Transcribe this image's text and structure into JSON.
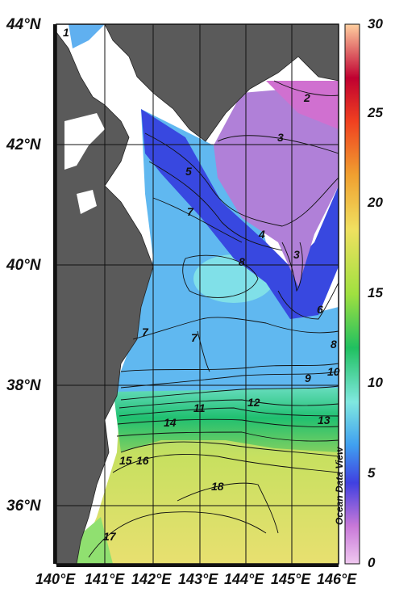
{
  "map": {
    "lat_labels": [
      "44°N",
      "42°N",
      "40°N",
      "38°N",
      "36°N"
    ],
    "lon_labels": [
      "140°E",
      "141°E",
      "142°E",
      "143°E",
      "144°E",
      "145°E",
      "146°E"
    ],
    "colorbar_ticks": [
      "30",
      "25",
      "20",
      "15",
      "10",
      "5",
      "0"
    ],
    "watermark": "Ocean Data View",
    "contour_labels": [
      "1",
      "2",
      "3",
      "4",
      "5",
      "7",
      "8",
      "3",
      "6",
      "7",
      "7",
      "8",
      "9",
      "10",
      "11",
      "12",
      "13",
      "14",
      "15",
      "16",
      "17",
      "18"
    ]
  }
}
